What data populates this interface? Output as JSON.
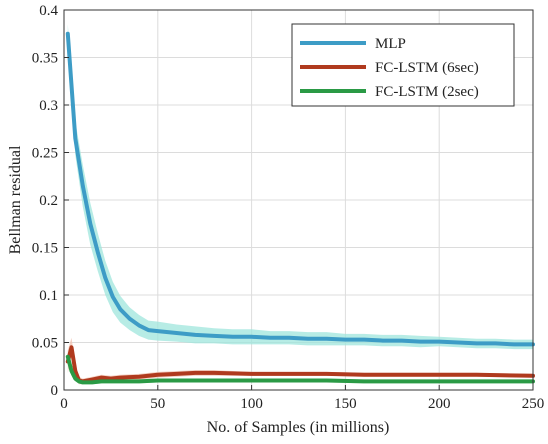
{
  "chart_data": {
    "type": "line",
    "xlabel": "No. of Samples (in millions)",
    "ylabel": "Bellman residual",
    "xlim": [
      0,
      250
    ],
    "ylim": [
      0,
      0.4
    ],
    "xticks": [
      0,
      50,
      100,
      150,
      200,
      250
    ],
    "yticks": [
      0,
      0.05,
      0.1,
      0.15,
      0.2,
      0.25,
      0.3,
      0.35,
      0.4
    ],
    "xtick_labels": [
      "0",
      "50",
      "100",
      "150",
      "200",
      "250"
    ],
    "ytick_labels": [
      "0",
      "0.05",
      "0.1",
      "0.15",
      "0.2",
      "0.25",
      "0.3",
      "0.35",
      "0.4"
    ],
    "grid": true,
    "legend_position": "top-right",
    "series": [
      {
        "name": "MLP",
        "color": "#3d9cc6",
        "band_color": "#9fe6dc",
        "x": [
          2,
          6,
          10,
          14,
          18,
          22,
          26,
          30,
          35,
          40,
          45,
          50,
          60,
          70,
          80,
          90,
          100,
          110,
          120,
          130,
          140,
          150,
          160,
          170,
          180,
          190,
          200,
          210,
          220,
          230,
          240,
          250
        ],
        "y": [
          0.375,
          0.265,
          0.215,
          0.175,
          0.145,
          0.118,
          0.098,
          0.085,
          0.075,
          0.068,
          0.063,
          0.062,
          0.06,
          0.058,
          0.057,
          0.056,
          0.056,
          0.055,
          0.055,
          0.054,
          0.054,
          0.053,
          0.053,
          0.052,
          0.052,
          0.051,
          0.051,
          0.05,
          0.049,
          0.049,
          0.048,
          0.048
        ],
        "band": [
          0.01,
          0.018,
          0.022,
          0.022,
          0.02,
          0.018,
          0.016,
          0.014,
          0.012,
          0.011,
          0.01,
          0.01,
          0.009,
          0.009,
          0.008,
          0.008,
          0.008,
          0.007,
          0.007,
          0.007,
          0.007,
          0.006,
          0.006,
          0.006,
          0.006,
          0.006,
          0.005,
          0.005,
          0.005,
          0.005,
          0.005,
          0.005
        ]
      },
      {
        "name": "FC-LSTM (6sec)",
        "color": "#b03a1e",
        "band_color": "#f0c2b0",
        "x": [
          2,
          4,
          6,
          8,
          10,
          15,
          20,
          25,
          30,
          40,
          50,
          60,
          70,
          80,
          100,
          120,
          140,
          160,
          180,
          200,
          220,
          250
        ],
        "y": [
          0.03,
          0.045,
          0.02,
          0.01,
          0.009,
          0.011,
          0.013,
          0.012,
          0.013,
          0.014,
          0.016,
          0.017,
          0.018,
          0.018,
          0.017,
          0.017,
          0.017,
          0.016,
          0.016,
          0.016,
          0.016,
          0.015
        ],
        "band": [
          0.012,
          0.01,
          0.008,
          0.004,
          0.003,
          0.003,
          0.003,
          0.003,
          0.003,
          0.003,
          0.003,
          0.003,
          0.003,
          0.003,
          0.002,
          0.002,
          0.002,
          0.002,
          0.002,
          0.002,
          0.002,
          0.002
        ]
      },
      {
        "name": "FC-LSTM (2sec)",
        "color": "#2a9a45",
        "band_color": "#b8e3c0",
        "x": [
          2,
          4,
          6,
          8,
          10,
          15,
          20,
          30,
          40,
          50,
          60,
          80,
          100,
          120,
          140,
          160,
          180,
          200,
          220,
          250
        ],
        "y": [
          0.035,
          0.02,
          0.012,
          0.009,
          0.008,
          0.008,
          0.009,
          0.009,
          0.009,
          0.01,
          0.01,
          0.01,
          0.01,
          0.01,
          0.01,
          0.009,
          0.009,
          0.009,
          0.009,
          0.009
        ],
        "band": [
          0.006,
          0.005,
          0.003,
          0.002,
          0.002,
          0.002,
          0.002,
          0.002,
          0.002,
          0.002,
          0.002,
          0.002,
          0.002,
          0.002,
          0.002,
          0.002,
          0.002,
          0.002,
          0.002,
          0.002
        ]
      }
    ]
  }
}
